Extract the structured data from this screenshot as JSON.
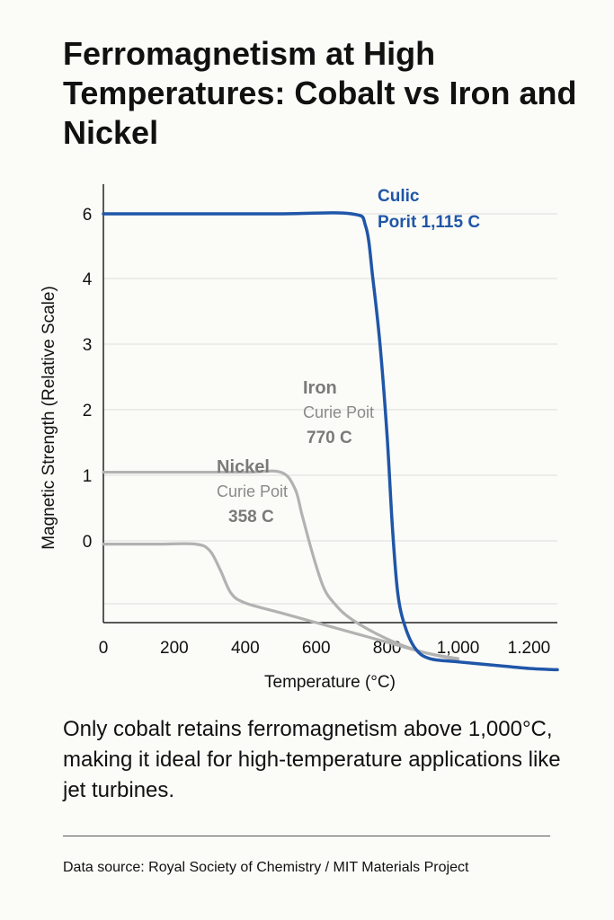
{
  "title": "Ferromagnetism at High Temperatures: Cobalt vs Iron and Nickel",
  "caption": "Only cobalt retains ferromagnetism above 1,000°C, making it ideal for high-temperature applications like jet turbines.",
  "source": "Data source: Royal Society of Chemistry / MIT Materials Project",
  "chart_data": {
    "type": "line",
    "xlabel": "Temperature (°C)",
    "ylabel": "Magnetic Strength (Relative Scale)",
    "xlim": [
      0,
      1280
    ],
    "x_ticks": [
      0,
      200,
      400,
      600,
      800,
      1000,
      1200
    ],
    "x_tick_labels": [
      "0",
      "200",
      "400",
      "600",
      "800",
      "1,000",
      "1.200"
    ],
    "y_tick_labels": [
      "6",
      "4",
      "3",
      "2",
      "1",
      "0"
    ],
    "grid": true,
    "legend": "none",
    "colors": {
      "cobalt": "#1f56a8",
      "iron": "#b2b2b2",
      "nickel": "#b2b2b2",
      "grid": "#dedede",
      "axis": "#222222"
    },
    "series": [
      {
        "name": "Cobalt",
        "annotation": [
          "Culic",
          "Porit 1,115 C"
        ],
        "x": [
          0,
          250,
          500,
          700,
          740,
          760,
          780,
          800,
          815,
          830,
          850,
          880,
          920,
          1000,
          1100,
          1200,
          1280
        ],
        "y": [
          6,
          6,
          6,
          6,
          5.8,
          5.0,
          4.0,
          2.6,
          1.2,
          0.2,
          -0.3,
          -0.65,
          -0.8,
          -0.85,
          -0.9,
          -0.95,
          -0.97
        ]
      },
      {
        "name": "Iron",
        "annotation": [
          "Iron",
          "Curie Poit",
          "770 C"
        ],
        "x": [
          0,
          200,
          400,
          500,
          540,
          560,
          590,
          620,
          650,
          700,
          800,
          900,
          1000
        ],
        "y": [
          2.05,
          2.05,
          2.05,
          2.05,
          1.8,
          1.4,
          0.8,
          0.3,
          0.05,
          -0.2,
          -0.5,
          -0.7,
          -0.8
        ]
      },
      {
        "name": "Nickel",
        "annotation": [
          "Nickel",
          "Curie Poit",
          "358 C"
        ],
        "x": [
          0,
          150,
          260,
          300,
          330,
          360,
          400,
          500,
          600,
          700,
          800,
          900,
          1000
        ],
        "y": [
          0.95,
          0.95,
          0.95,
          0.85,
          0.55,
          0.2,
          0.05,
          -0.1,
          -0.25,
          -0.4,
          -0.55,
          -0.7,
          -0.82
        ]
      }
    ]
  }
}
